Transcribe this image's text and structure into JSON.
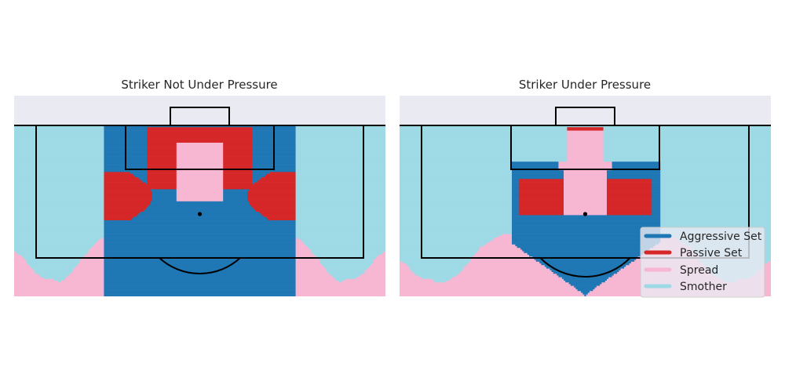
{
  "figure": {
    "background": "#ffffff",
    "pitch_outside": "#eaeaf2"
  },
  "legend": {
    "placement": "lower-right of right panel",
    "entries": [
      {
        "key": "aggressive",
        "label": "Aggressive Set",
        "color": "#1f77b4"
      },
      {
        "key": "passive",
        "label": "Passive Set",
        "color": "#d62728"
      },
      {
        "key": "spread",
        "label": "Spread",
        "color": "#f7b6d2"
      },
      {
        "key": "smother",
        "label": "Smother",
        "color": "#9edae5"
      }
    ]
  },
  "chart_data": [
    {
      "type": "heatmap",
      "title": "Striker Not Under Pressure",
      "xlabel": "",
      "ylabel": "",
      "grid": false,
      "category_legend": [
        "Aggressive Set",
        "Passive Set",
        "Spread",
        "Smother"
      ],
      "zones": {
        "smother_edge_depth": [
          [
            0,
            28
          ],
          [
            2,
            29
          ],
          [
            4,
            31
          ],
          [
            6,
            33
          ],
          [
            8,
            34
          ],
          [
            10,
            34
          ],
          [
            12,
            35
          ],
          [
            14,
            34
          ],
          [
            16,
            32
          ],
          [
            18,
            30
          ],
          [
            20,
            28
          ],
          [
            22,
            26
          ],
          [
            24,
            25
          ],
          [
            26,
            24
          ],
          [
            27.3,
            24
          ],
          [
            72.7,
            24
          ],
          [
            74,
            24
          ],
          [
            76,
            25
          ],
          [
            78,
            26
          ],
          [
            80,
            28
          ],
          [
            82,
            30
          ],
          [
            84,
            32
          ],
          [
            86,
            34
          ],
          [
            88,
            35
          ],
          [
            90,
            34
          ],
          [
            92,
            34
          ],
          [
            94,
            33
          ],
          [
            96,
            31
          ],
          [
            98,
            29
          ],
          [
            100,
            28
          ]
        ],
        "aggressive_x_range": [
          24.3,
          75.7
        ],
        "aggressive_top_x_range": [
          34,
          66
        ],
        "aggressive_inner_core_x_range": [
          36.4,
          63.6
        ],
        "passive_top_cap_depth": 14,
        "passive_side_range_y": [
          10.5,
          21
        ],
        "spread_center_x_range": [
          43.5,
          56.5
        ],
        "spread_center_depth": 17,
        "spot_x": 50,
        "spot_y": 11
      }
    },
    {
      "type": "heatmap",
      "title": "Striker Under Pressure",
      "xlabel": "",
      "ylabel": "",
      "grid": false,
      "category_legend": [
        "Aggressive Set",
        "Passive Set",
        "Spread",
        "Smother"
      ],
      "zones": {
        "smother_edge_depth": [
          [
            0,
            30
          ],
          [
            2,
            31
          ],
          [
            4,
            33
          ],
          [
            6,
            34
          ],
          [
            8,
            34
          ],
          [
            10,
            35
          ],
          [
            12,
            35
          ],
          [
            14,
            34
          ],
          [
            16,
            33
          ],
          [
            18,
            31
          ],
          [
            20,
            29
          ],
          [
            22,
            27
          ],
          [
            24,
            26
          ],
          [
            26,
            25
          ],
          [
            28,
            24
          ],
          [
            30,
            24
          ],
          [
            70,
            24
          ],
          [
            72,
            24
          ],
          [
            74,
            25
          ],
          [
            76,
            26
          ],
          [
            78,
            27
          ],
          [
            80,
            29
          ],
          [
            82,
            31
          ],
          [
            84,
            33
          ],
          [
            86,
            34
          ],
          [
            88,
            35
          ],
          [
            90,
            35
          ],
          [
            92,
            34
          ],
          [
            94,
            34
          ],
          [
            96,
            33
          ],
          [
            98,
            31
          ],
          [
            100,
            30
          ]
        ],
        "aggressive_x_range": [
          30,
          70
        ],
        "aggressive_top_x_range": [
          38.7,
          61.3
        ],
        "passive_top_cap_depth": 1,
        "passive_side_range_y": [
          12,
          20
        ],
        "spread_center_x_range": [
          44,
          56
        ],
        "spread_center_depth": 20,
        "spot_x": 50,
        "spot_y": 11
      }
    }
  ]
}
